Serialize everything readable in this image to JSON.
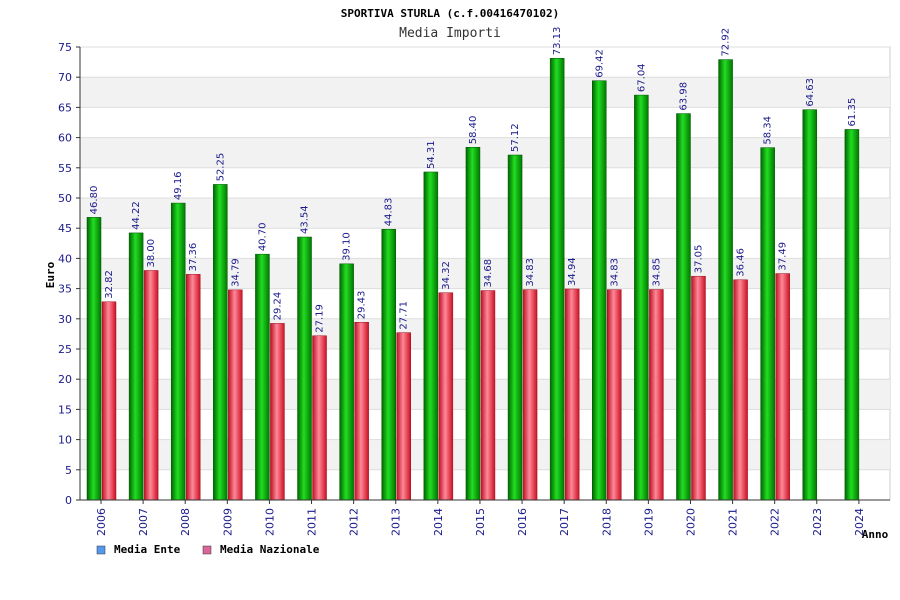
{
  "chart_data": {
    "type": "bar",
    "title": "SPORTIVA STURLA (c.f.00416470102)",
    "subtitle": "Media Importi",
    "ylabel": "Euro",
    "xlabel": "Anno",
    "ylim": [
      0,
      75
    ],
    "yticks": [
      0,
      5,
      10,
      15,
      20,
      25,
      30,
      35,
      40,
      45,
      50,
      55,
      60,
      65,
      70,
      75
    ],
    "grid": true,
    "legend_position": "bottom-left",
    "categories": [
      "2006",
      "2007",
      "2008",
      "2009",
      "2010",
      "2011",
      "2012",
      "2013",
      "2014",
      "2015",
      "2016",
      "2017",
      "2018",
      "2019",
      "2020",
      "2021",
      "2022",
      "2023",
      "2024"
    ],
    "series": [
      {
        "name": "Media Ente",
        "color": "#00aa00",
        "legend_color": "#5599ee",
        "values": [
          46.8,
          44.22,
          49.16,
          52.25,
          40.7,
          43.54,
          39.1,
          44.83,
          54.31,
          58.4,
          57.12,
          73.13,
          69.42,
          67.04,
          63.98,
          72.92,
          58.34,
          64.63,
          61.35
        ],
        "labels": [
          "46.80",
          "44.22",
          "49.16",
          "52.25",
          "40.70",
          "43.54",
          "39.10",
          "44.83",
          "54.31",
          "58.40",
          "57.12",
          "73.13",
          "69.42",
          "67.04",
          "63.98",
          "72.92",
          "58.34",
          "64.63",
          "61.35"
        ]
      },
      {
        "name": "Media Nazionale",
        "color": "#dd2233",
        "legend_color": "#dd6699",
        "values": [
          32.82,
          38.0,
          37.36,
          34.79,
          29.24,
          27.19,
          29.43,
          27.71,
          34.32,
          34.68,
          34.83,
          34.94,
          34.83,
          34.85,
          37.05,
          36.46,
          37.49,
          null,
          null
        ],
        "labels": [
          "32.82",
          "38.00",
          "37.36",
          "34.79",
          "29.24",
          "27.19",
          "29.43",
          "27.71",
          "34.32",
          "34.68",
          "34.83",
          "34.94",
          "34.83",
          "34.85",
          "37.05",
          "36.46",
          "37.49",
          null,
          null
        ]
      }
    ]
  }
}
